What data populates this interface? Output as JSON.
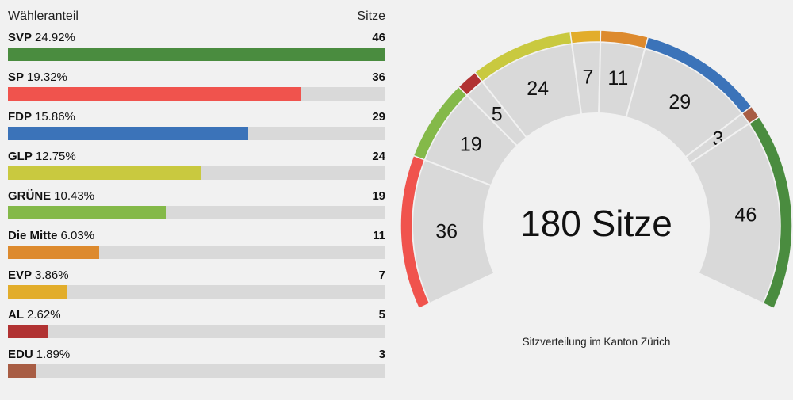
{
  "chart_data": {
    "type": "bar",
    "header": {
      "left": "Wähleranteil",
      "right": "Sitze"
    },
    "parties": [
      {
        "name": "SVP",
        "percent": "24.92%",
        "share": 24.92,
        "seats": 46,
        "color": "#4a8c3f"
      },
      {
        "name": "SP",
        "percent": "19.32%",
        "share": 19.32,
        "seats": 36,
        "color": "#f0534d"
      },
      {
        "name": "FDP",
        "percent": "15.86%",
        "share": 15.86,
        "seats": 29,
        "color": "#3b73b9"
      },
      {
        "name": "GLP",
        "percent": "12.75%",
        "share": 12.75,
        "seats": 24,
        "color": "#c9c93f"
      },
      {
        "name": "GRÜNE",
        "percent": "10.43%",
        "share": 10.43,
        "seats": 19,
        "color": "#84b949"
      },
      {
        "name": "Die Mitte",
        "percent": "6.03%",
        "share": 6.03,
        "seats": 11,
        "color": "#dd8a2e"
      },
      {
        "name": "EVP",
        "percent": "3.86%",
        "share": 3.86,
        "seats": 7,
        "color": "#e2ad2b"
      },
      {
        "name": "AL",
        "percent": "2.62%",
        "share": 2.62,
        "seats": 5,
        "color": "#b13232"
      },
      {
        "name": "EDU",
        "percent": "1.89%",
        "share": 1.89,
        "seats": 3,
        "color": "#a85d44"
      }
    ],
    "share_max": 24.92,
    "gauge": {
      "total_label": "180 Sitze",
      "total_seats": 180,
      "caption": "Sitzverteilung im Kanton Zürich",
      "order": [
        "SP",
        "GRÜNE",
        "AL",
        "GLP",
        "EVP",
        "Die Mitte",
        "FDP",
        "EDU",
        "SVP"
      ]
    }
  }
}
